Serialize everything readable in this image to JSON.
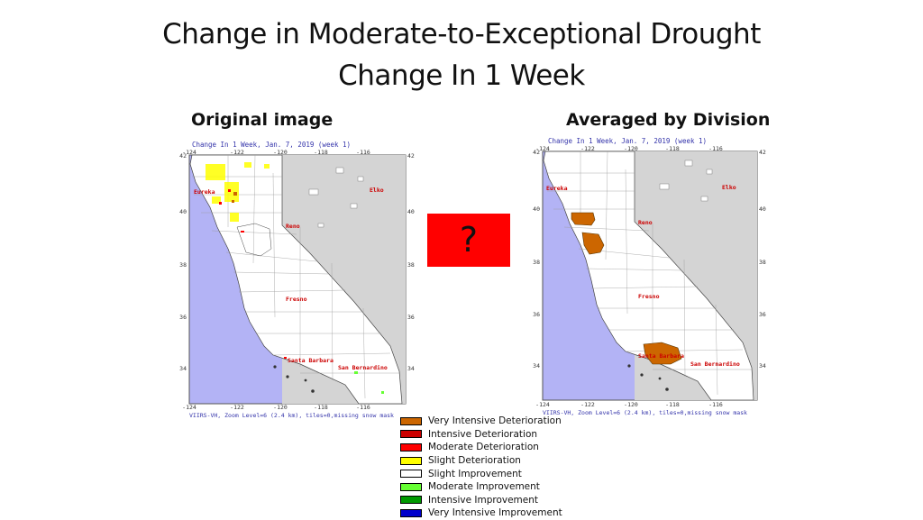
{
  "title": "Change in Moderate-to-Exceptional Drought",
  "subtitle": "Change In 1 Week",
  "left_panel": {
    "heading": "Original image",
    "map_title": "Change In 1 Week, Jan. 7, 2019 (week 1)",
    "footer": "VIIRS-VH, Zoom Level=6 (2.4 km), tiles=0,missing snow mask"
  },
  "right_panel": {
    "heading": "Averaged by Division",
    "map_title": "Change In 1 Week, Jan. 7, 2019 (week 1)",
    "footer": "VIIRS-VH, Zoom Level=6 (2.4 km), tiles=0,missing snow mask"
  },
  "placeholder": {
    "text": "?",
    "color": "#ff0000"
  },
  "map": {
    "lon_ticks": [
      "-124",
      "-122",
      "-120",
      "-118",
      "-116"
    ],
    "lat_ticks": [
      "42",
      "40",
      "38",
      "36",
      "34"
    ],
    "cities": [
      "Eureka",
      "Elko",
      "Reno",
      "Fresno",
      "Santa Barbara",
      "San Bernardino"
    ],
    "colors": {
      "ocean": "#b3b3f5",
      "land": "#ffffff",
      "outside": "#d4d4d4",
      "city": "#cc0000"
    }
  },
  "legend": [
    {
      "label": "Very Intensive Deterioration",
      "color": "#cc6600"
    },
    {
      "label": "Intensive Deterioration",
      "color": "#cc0000"
    },
    {
      "label": "Moderate Deterioration",
      "color": "#ff0000"
    },
    {
      "label": "Slight Deterioration",
      "color": "#ffff00"
    },
    {
      "label": "Slight Improvement",
      "color": "#ffffff"
    },
    {
      "label": "Moderate Improvement",
      "color": "#66ff33"
    },
    {
      "label": "Intensive Improvement",
      "color": "#009900"
    },
    {
      "label": "Very Intensive Improvement",
      "color": "#0000cc"
    }
  ]
}
